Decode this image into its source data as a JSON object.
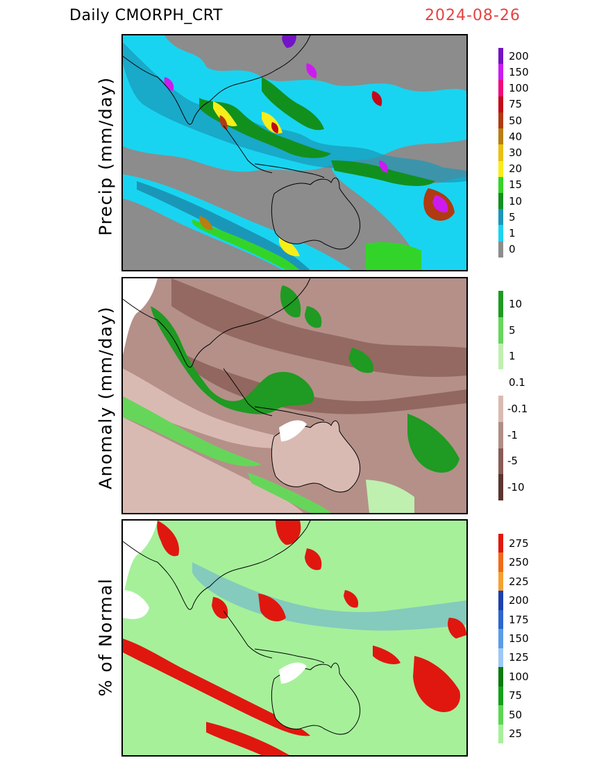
{
  "header": {
    "title": "Daily  CMORPH_CRT",
    "date": "2024-08-26",
    "date_color": "#e8413f"
  },
  "panels": [
    {
      "id": "precip",
      "ylabel": "Precip (mm/day)",
      "background_color": "#8c8c8c",
      "colorbar": [
        {
          "label": "0",
          "color": "#8c8c8c"
        },
        {
          "label": "1",
          "color": "#19d4f0"
        },
        {
          "label": "5",
          "color": "#1a97b8"
        },
        {
          "label": "10",
          "color": "#12901e"
        },
        {
          "label": "15",
          "color": "#33d42a"
        },
        {
          "label": "20",
          "color": "#f7ed19"
        },
        {
          "label": "30",
          "color": "#e8c00f"
        },
        {
          "label": "40",
          "color": "#b87e12"
        },
        {
          "label": "50",
          "color": "#b03a12"
        },
        {
          "label": "75",
          "color": "#c40818"
        },
        {
          "label": "100",
          "color": "#f0087c"
        },
        {
          "label": "150",
          "color": "#cc1bf0"
        },
        {
          "label": "200",
          "color": "#7314c4"
        }
      ]
    },
    {
      "id": "anomaly",
      "ylabel": "Anomaly (mm/day)",
      "background_color": "#b49089",
      "colorbar": [
        {
          "label": "-10",
          "color": "#5b3430"
        },
        {
          "label": "-5",
          "color": "#885c55"
        },
        {
          "label": "-1",
          "color": "#b08d86"
        },
        {
          "label": "-0.1",
          "color": "#d9bab2"
        },
        {
          "label": "0.1",
          "color": "#ffffff"
        },
        {
          "label": "1",
          "color": "#bff0b0"
        },
        {
          "label": "5",
          "color": "#66d65a"
        },
        {
          "label": "10",
          "color": "#1f9a22"
        }
      ]
    },
    {
      "id": "percent",
      "ylabel": "% of Normal",
      "background_color": "#a6f09a",
      "colorbar": [
        {
          "label": "25",
          "color": "#a6f09a"
        },
        {
          "label": "50",
          "color": "#5cd650"
        },
        {
          "label": "75",
          "color": "#13a018"
        },
        {
          "label": "100",
          "color": "#0a7a10"
        },
        {
          "label": "125",
          "color": "#9cc8f5"
        },
        {
          "label": "150",
          "color": "#5a9ce8"
        },
        {
          "label": "175",
          "color": "#2c66cf"
        },
        {
          "label": "200",
          "color": "#1d3fae"
        },
        {
          "label": "225",
          "color": "#f5a031"
        },
        {
          "label": "250",
          "color": "#f06a19"
        },
        {
          "label": "275",
          "color": "#e0170f"
        }
      ]
    }
  ]
}
